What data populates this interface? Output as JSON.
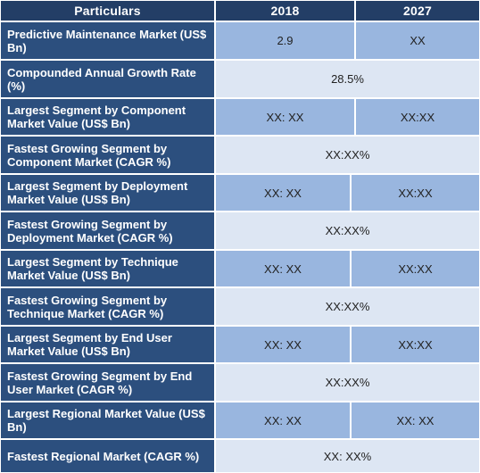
{
  "table": {
    "headers": [
      "Particulars",
      "2018",
      "2027"
    ],
    "rows": [
      {
        "label": "Predictive Maintenance Market (US$ Bn)",
        "v2018": "2.9",
        "v2027": "XX"
      },
      {
        "label": "Compounded Annual Growth Rate (%)",
        "merged": "28.5%"
      },
      {
        "label": "Largest Segment by Component Market Value (US$ Bn)",
        "v2018": "XX: XX",
        "v2027": "XX:XX"
      },
      {
        "label": "Fastest Growing Segment by Component Market (CAGR %)",
        "merged": "XX:XX%"
      },
      {
        "label": "Largest Segment by Deployment Market Value (US$ Bn)",
        "v2018": "XX: XX",
        "v2027": "XX:XX"
      },
      {
        "label": "Fastest Growing Segment by Deployment Market (CAGR %)",
        "merged": "XX:XX%"
      },
      {
        "label": "Largest Segment by Technique Market Value (US$ Bn)",
        "v2018": "XX: XX",
        "v2027": "XX:XX"
      },
      {
        "label": "Fastest Growing Segment by Technique Market (CAGR %)",
        "merged": "XX:XX%"
      },
      {
        "label": "Largest Segment by End User Market Value (US$ Bn)",
        "v2018": "XX: XX",
        "v2027": "XX:XX"
      },
      {
        "label": "Fastest Growing Segment by End User Market (CAGR %)",
        "merged": "XX:XX%"
      },
      {
        "label": "Largest Regional Market Value (US$ Bn)",
        "v2018": "XX: XX",
        "v2027": "XX: XX"
      },
      {
        "label": "Fastest Regional Market (CAGR %)",
        "merged": "XX: XX%"
      }
    ]
  },
  "colors": {
    "header_bg": "#233e66",
    "label_bg": "#2c4f7e",
    "value_dark_bg": "#99b6df",
    "value_light_bg": "#dde6f3"
  }
}
